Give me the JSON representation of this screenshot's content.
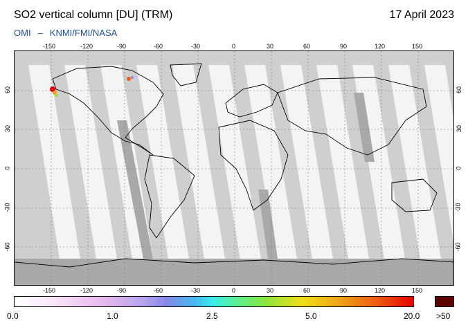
{
  "header": {
    "title": "SO2 vertical column [DU] (TRM)",
    "date": "17 April 2023",
    "credit_left": "OMI",
    "credit_dash": "–",
    "credit_right": "KNMI/FMI/NASA"
  },
  "map": {
    "projection": "equirectangular",
    "lon_range": [
      -180,
      180
    ],
    "lat_range": [
      -90,
      90
    ],
    "lon_ticks": [
      "-150",
      "-120",
      "-90",
      "-60",
      "-30",
      "0",
      "30",
      "60",
      "90",
      "120",
      "150"
    ],
    "lat_ticks": [
      "60",
      "30",
      "0",
      "-30",
      "-60"
    ],
    "colors": {
      "background_gray": "#cfcfcf",
      "swath_light": "#f4f4f4",
      "swath_gap": "#a9a9a9",
      "coastline": "#000000"
    }
  },
  "colorbar": {
    "labels": [
      "0.0",
      "1.0",
      "2.5",
      "5.0",
      "20.0",
      ">50"
    ],
    "min": 0.0,
    "max": 20.0,
    "overflow_label": ">50",
    "overflow_color": "#5a0404"
  }
}
